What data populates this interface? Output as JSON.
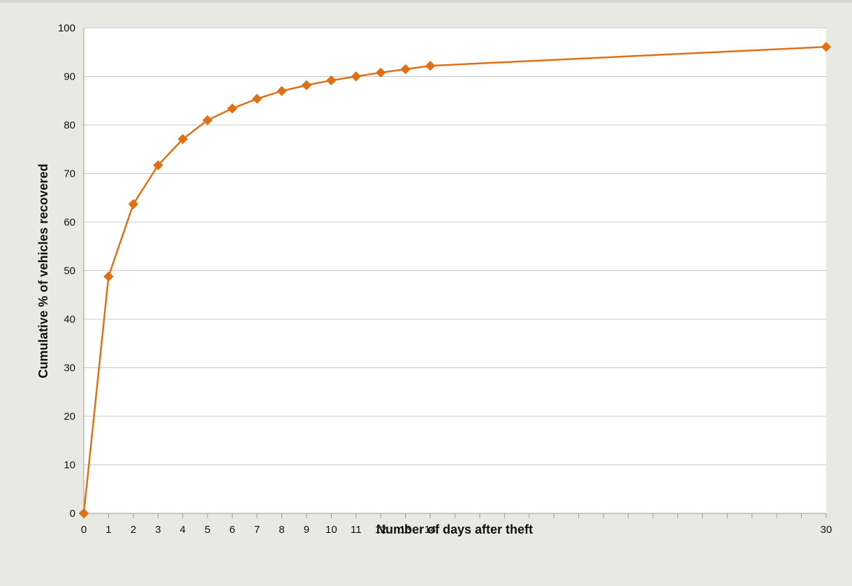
{
  "chart_data": {
    "type": "line",
    "xlabel": "Number of days after theft",
    "ylabel": "Cumulative % of vehicles recovered",
    "ylim": [
      0,
      100
    ],
    "yticks": [
      "0",
      "10",
      "20",
      "30",
      "40",
      "50",
      "60",
      "70",
      "80",
      "90",
      "100"
    ],
    "xlim": [
      0,
      30
    ],
    "xtick_labels": [
      "0",
      "1",
      "2",
      "3",
      "4",
      "5",
      "6",
      "7",
      "8",
      "9",
      "10",
      "11",
      "12",
      "13",
      "14",
      "30"
    ],
    "grid": "horizontal",
    "marker": "diamond",
    "color": "#e07014",
    "series": [
      {
        "x": [
          0,
          1,
          2,
          3,
          4,
          5,
          6,
          7,
          8,
          9,
          10,
          11,
          12,
          13,
          14,
          30
        ],
        "values": [
          0,
          48.8,
          63.7,
          71.7,
          77.1,
          81.0,
          83.4,
          85.4,
          87.0,
          88.2,
          89.2,
          90.0,
          90.8,
          91.5,
          92.2,
          96.1
        ]
      }
    ]
  }
}
